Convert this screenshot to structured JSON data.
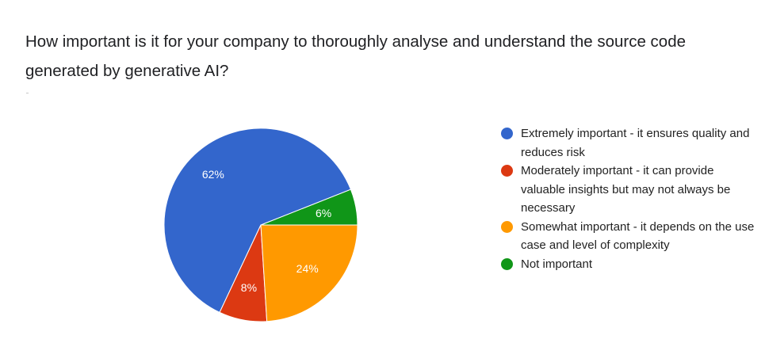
{
  "question": {
    "text": "How important is it for your company to thoroughly analyse and understand the source code generated by generative AI?"
  },
  "chart_data": {
    "type": "pie",
    "title": "",
    "slices": [
      {
        "label": "Extremely important - it ensures quality and reduces risk",
        "value": 62,
        "display": "62%",
        "color": "#3366cc"
      },
      {
        "label": "Moderately important - it can provide valuable insights but may not always be necessary",
        "value": 8,
        "display": "8%",
        "color": "#dc3912"
      },
      {
        "label": "Somewhat important - it depends on the use case and level of complexity",
        "value": 24,
        "display": "24%",
        "color": "#ff9900"
      },
      {
        "label": "Not important",
        "value": 6,
        "display": "6%",
        "color": "#109618"
      }
    ],
    "slice_order_clockwise_from_right": [
      3,
      0,
      1,
      2
    ],
    "legend_position": "right"
  }
}
